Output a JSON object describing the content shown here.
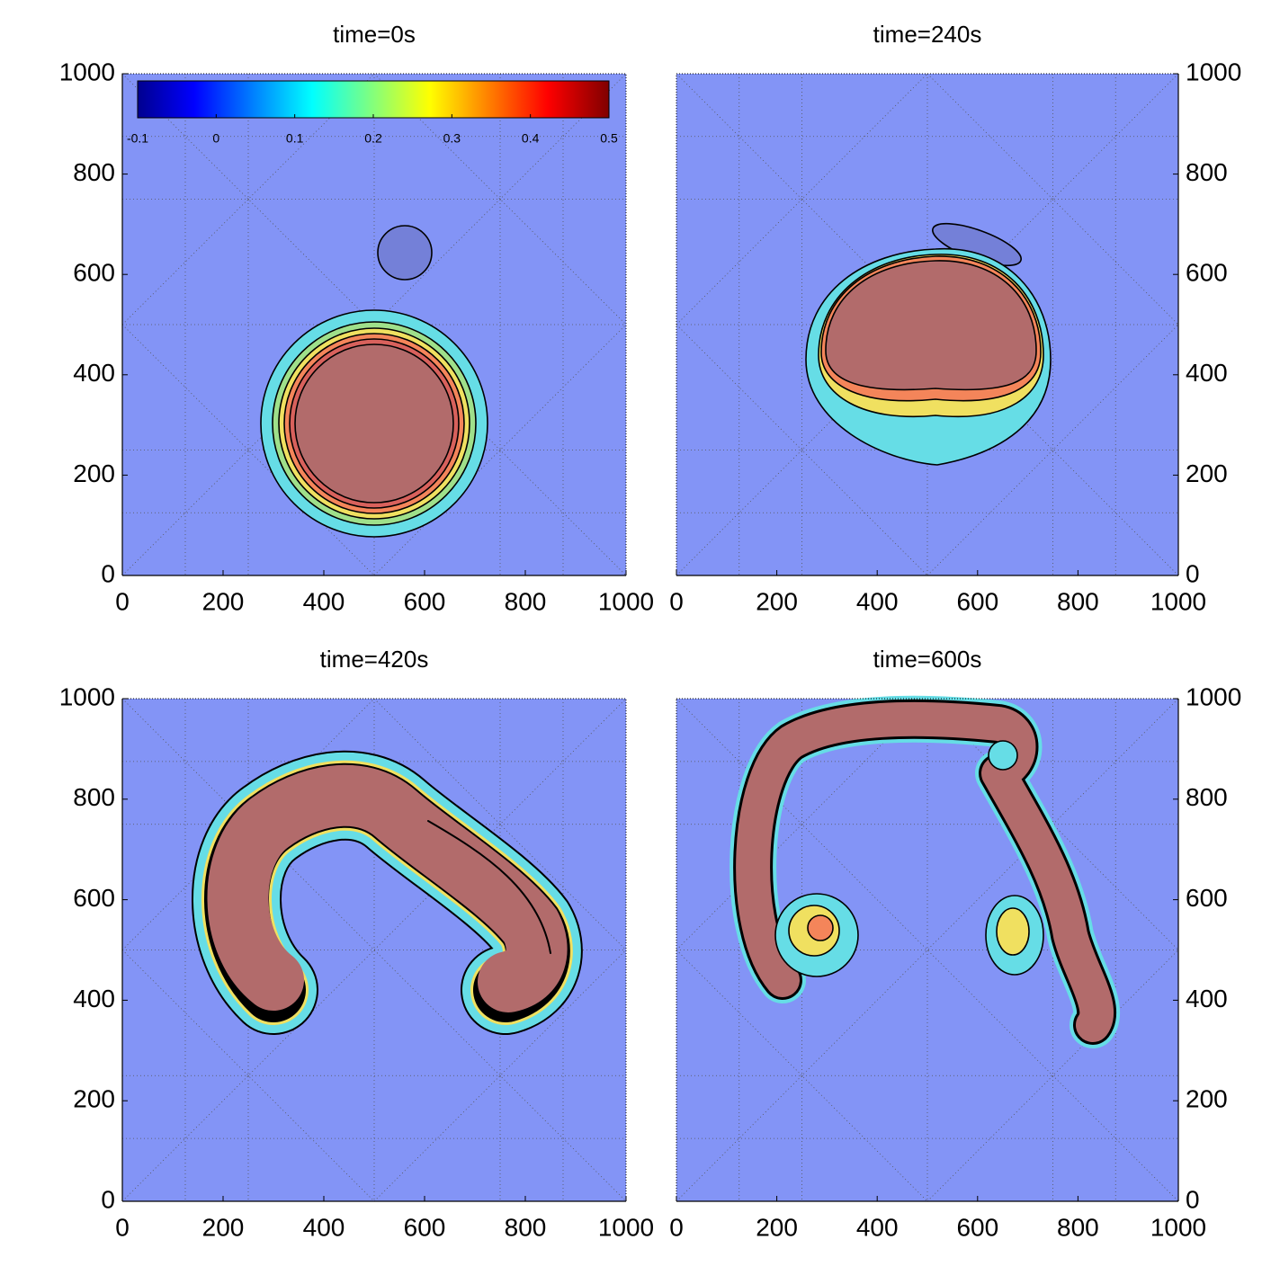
{
  "chart_data": [
    {
      "type": "contour",
      "title": "time=0s",
      "xlim": [
        0,
        1000
      ],
      "ylim": [
        0,
        1000
      ],
      "xticks": [
        0,
        200,
        400,
        600,
        800,
        1000
      ],
      "yticks": [
        0,
        200,
        400,
        600,
        800,
        1000
      ],
      "yaxis": "left",
      "colorbar": {
        "lim": [
          -0.1,
          0.5
        ],
        "ticks": [
          -0.1,
          0,
          0.1,
          0.2,
          0.3,
          0.4,
          0.5
        ]
      }
    },
    {
      "type": "contour",
      "title": "time=240s",
      "xlim": [
        0,
        1000
      ],
      "ylim": [
        0,
        1000
      ],
      "xticks": [
        0,
        200,
        400,
        600,
        800,
        1000
      ],
      "yticks": [
        0,
        200,
        400,
        600,
        800,
        1000
      ],
      "yaxis": "right"
    },
    {
      "type": "contour",
      "title": "time=420s",
      "xlim": [
        0,
        1000
      ],
      "ylim": [
        0,
        1000
      ],
      "xticks": [
        0,
        200,
        400,
        600,
        800,
        1000
      ],
      "yticks": [
        0,
        200,
        400,
        600,
        800,
        1000
      ],
      "yaxis": "left"
    },
    {
      "type": "contour",
      "title": "time=600s",
      "xlim": [
        0,
        1000
      ],
      "ylim": [
        0,
        1000
      ],
      "xticks": [
        0,
        200,
        400,
        600,
        800,
        1000
      ],
      "yticks": [
        0,
        200,
        400,
        600,
        800,
        1000
      ],
      "yaxis": "right"
    }
  ]
}
